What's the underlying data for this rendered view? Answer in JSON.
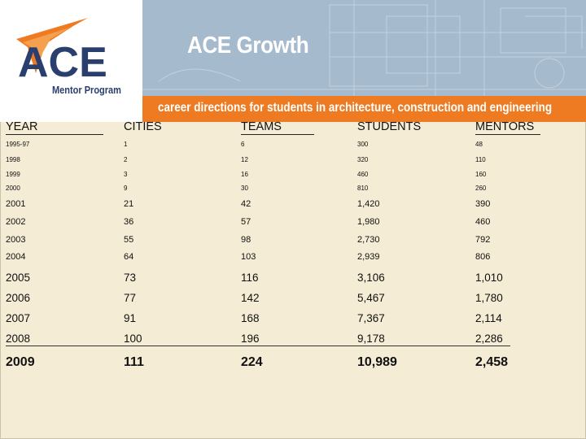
{
  "banner": {
    "title": "ACE Growth",
    "tagline": "career directions for students in architecture, construction and engineering"
  },
  "logo": {
    "mark": "ACE",
    "subtitle": "Mentor Program"
  },
  "colors": {
    "orange": "#ee7b22",
    "navy": "#2a3f6e",
    "banner_blue": "#a6bacd",
    "background": "#f4ecd4"
  },
  "table": {
    "headers": [
      "YEAR",
      "CITIES",
      "TEAMS",
      "STUDENTS",
      "MENTORS"
    ],
    "rows": [
      [
        "1995-97",
        "1",
        "6",
        "300",
        "48"
      ],
      [
        "1998",
        "2",
        "12",
        "320",
        "110"
      ],
      [
        "1999",
        "3",
        "16",
        "460",
        "160"
      ],
      [
        "2000",
        "9",
        "30",
        "810",
        "260"
      ],
      [
        "2001",
        "21",
        "42",
        "1,420",
        "390"
      ],
      [
        "2002",
        "36",
        "57",
        "1,980",
        "460"
      ],
      [
        "2003",
        "55",
        "98",
        "2,730",
        "792"
      ],
      [
        "2004",
        "64",
        "103",
        "2,939",
        "806"
      ],
      [
        "2005",
        "73",
        "116",
        "3,106",
        "1,010"
      ],
      [
        "2006",
        "77",
        "142",
        "5,467",
        "1,780"
      ],
      [
        "2007",
        "91",
        "168",
        "7,367",
        "2,114"
      ],
      [
        "2008",
        "100",
        "196",
        "9,178",
        "2,286"
      ],
      [
        "2009",
        "111",
        "224",
        "10,989",
        "2,458"
      ]
    ]
  }
}
